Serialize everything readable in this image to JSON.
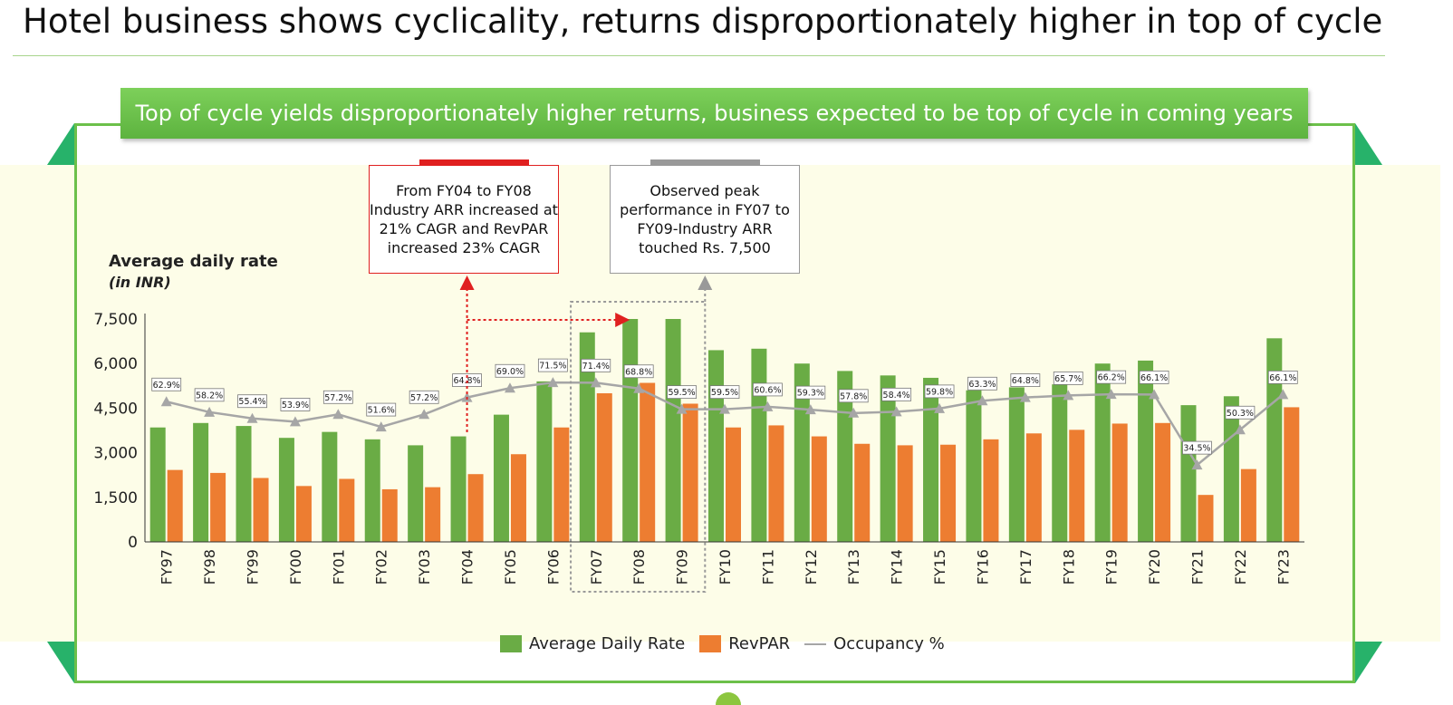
{
  "page": {
    "title": "Hotel business shows cyclicality, returns disproportionately higher in top of cycle",
    "banner": "Top of cycle yields disproportionately higher returns, business expected to be top of cycle in coming years"
  },
  "annotations": {
    "callout_1": "From FY04 to FY08 Industry ARR increased at 21% CAGR and RevPAR increased 23% CAGR",
    "callout_2": "Observed peak performance in FY07 to FY09-Industry ARR touched Rs. 7,500"
  },
  "colors": {
    "adr": "#6aac45",
    "revpar": "#ed7d31",
    "occupancy": "#a6a6a6",
    "accent_green": "#6cc04a",
    "accent_red": "#e02020"
  },
  "chart_data": {
    "type": "bar",
    "title": "",
    "ylabel": "Average daily rate",
    "ylabel_sub": "(in INR)",
    "ylim": [
      0,
      7500
    ],
    "yticks": [
      "0",
      "1,500",
      "3,000",
      "4,500",
      "6,000",
      "7,500"
    ],
    "ytick_values": [
      0,
      1500,
      3000,
      4500,
      6000,
      7500
    ],
    "y2lim": [
      0,
      100
    ],
    "categories": [
      "FY97",
      "FY98",
      "FY99",
      "FY00",
      "FY01",
      "FY02",
      "FY03",
      "FY04",
      "FY05",
      "FY06",
      "FY07",
      "FY08",
      "FY09",
      "FY10",
      "FY11",
      "FY12",
      "FY13",
      "FY14",
      "FY15",
      "FY16",
      "FY17",
      "FY18",
      "FY19",
      "FY20",
      "FY21",
      "FY22",
      "FY23"
    ],
    "series": [
      {
        "name": "Average Daily Rate",
        "type": "bar",
        "values": [
          3850,
          4000,
          3900,
          3500,
          3700,
          3450,
          3250,
          3550,
          4280,
          5400,
          7050,
          7500,
          7500,
          6450,
          6500,
          6000,
          5750,
          5600,
          5520,
          5100,
          5200,
          5300,
          6000,
          6100,
          4600,
          4900,
          6850
        ]
      },
      {
        "name": "RevPAR",
        "type": "bar",
        "values": [
          2420,
          2320,
          2150,
          1880,
          2120,
          1770,
          1840,
          2280,
          2950,
          3850,
          5000,
          5350,
          4650,
          3850,
          3920,
          3550,
          3300,
          3250,
          3270,
          3450,
          3650,
          3770,
          3980,
          4000,
          1580,
          2450,
          4530
        ]
      },
      {
        "name": "Occupancy %",
        "type": "line",
        "axis": "secondary",
        "values": [
          62.9,
          58.2,
          55.4,
          53.9,
          57.2,
          51.6,
          57.2,
          64.8,
          69.0,
          71.5,
          71.4,
          68.8,
          59.5,
          59.5,
          60.6,
          59.3,
          57.8,
          58.4,
          59.8,
          63.3,
          64.8,
          65.7,
          66.2,
          66.1,
          34.5,
          50.3,
          66.1
        ],
        "labels": [
          "62.9%",
          "58.2%",
          "55.4%",
          "53.9%",
          "57.2%",
          "51.6%",
          "57.2%",
          "64.8%",
          "69.0%",
          "71.5%",
          "71.4%",
          "68.8%",
          "59.5%",
          "59.5%",
          "60.6%",
          "59.3%",
          "57.8%",
          "58.4%",
          "59.8%",
          "63.3%",
          "64.8%",
          "65.7%",
          "66.2%",
          "66.1%",
          "34.5%",
          "50.3%",
          "66.1%"
        ]
      }
    ],
    "legend": [
      "Average Daily Rate",
      "RevPAR",
      "Occupancy %"
    ],
    "legend_position": "bottom",
    "grid": false
  }
}
